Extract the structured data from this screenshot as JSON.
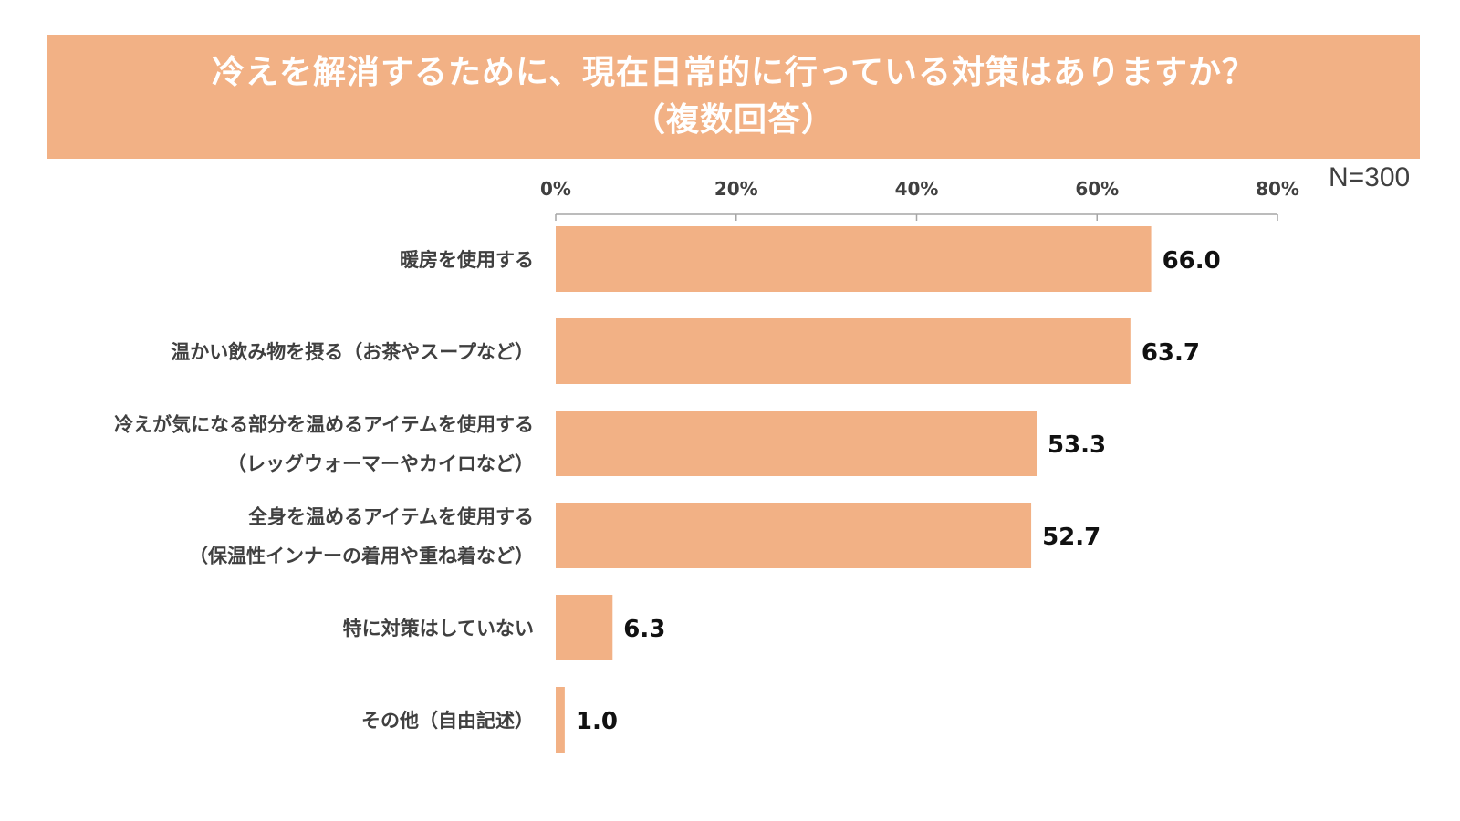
{
  "title": {
    "line1": "冷えを解消するために、現在日常的に行っている対策はありますか？",
    "line2": "（複数回答）"
  },
  "sample_size": "N=300",
  "colors": {
    "bar": "#f2b185",
    "banner": "#f2b185",
    "axis": "#a6a6a6"
  },
  "chart_data": {
    "type": "bar",
    "orientation": "horizontal",
    "title": "冷えを解消するために、現在日常的に行っている対策はありますか？（複数回答）",
    "xlim": [
      0,
      80
    ],
    "xticks": [
      "0%",
      "20%",
      "40%",
      "60%",
      "80%"
    ],
    "tick_values": [
      0,
      20,
      40,
      60,
      80
    ],
    "categories": [
      [
        "暖房を使用する"
      ],
      [
        "温かい飲み物を摂る（お茶やスープなど）"
      ],
      [
        "冷えが気になる部分を温めるアイテムを使用する",
        "（レッグウォーマーやカイロなど）"
      ],
      [
        "全身を温めるアイテムを使用する",
        "（保温性インナーの着用や重ね着など）"
      ],
      [
        "特に対策はしていない"
      ],
      [
        "その他（自由記述）"
      ]
    ],
    "values": [
      66.0,
      63.7,
      53.3,
      52.7,
      6.3,
      1.0
    ],
    "value_labels": [
      "66.0",
      "63.7",
      "53.3",
      "52.7",
      "6.3",
      "1.0"
    ]
  }
}
